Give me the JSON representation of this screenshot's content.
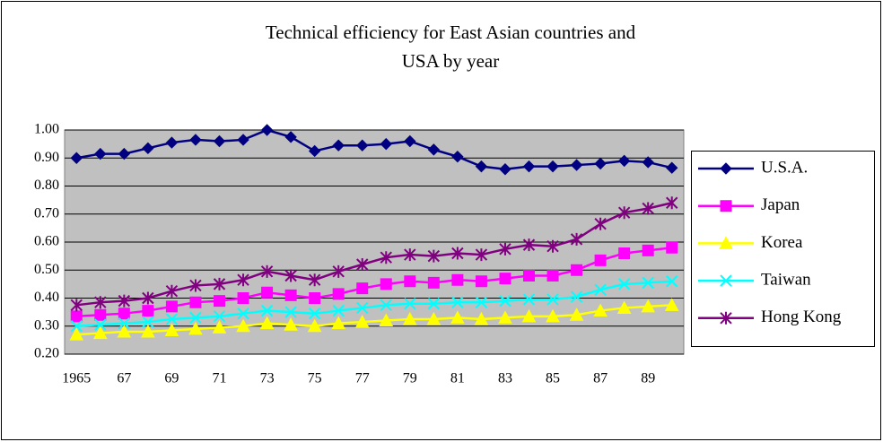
{
  "chart_data": {
    "type": "line",
    "title": "Technical efficiency for East Asian countries and USA by year",
    "categories": [
      "1965",
      null,
      "67",
      null,
      "69",
      null,
      "71",
      null,
      "73",
      null,
      "75",
      null,
      "77",
      null,
      "79",
      null,
      "81",
      null,
      "83",
      null,
      "85",
      null,
      "87",
      null,
      "89",
      null
    ],
    "ylim": [
      0.2,
      1.0
    ],
    "yticks": [
      {
        "value": 0.2,
        "label": "0.20"
      },
      {
        "value": 0.3,
        "label": "0.30"
      },
      {
        "value": 0.4,
        "label": "0.40"
      },
      {
        "value": 0.5,
        "label": "0.50"
      },
      {
        "value": 0.6,
        "label": "0.60"
      },
      {
        "value": 0.7,
        "label": "0.70"
      },
      {
        "value": 0.8,
        "label": "0.80"
      },
      {
        "value": 0.9,
        "label": "0.90"
      },
      {
        "value": 1.0,
        "label": "1.00"
      }
    ],
    "grid": true,
    "legend": "right",
    "series": [
      {
        "name": "U.S.A.",
        "color": "#000080",
        "marker": "diamond",
        "values": [
          0.9,
          0.915,
          0.915,
          0.935,
          0.955,
          0.965,
          0.96,
          0.965,
          1.0,
          0.975,
          0.925,
          0.945,
          0.945,
          0.95,
          0.96,
          0.93,
          0.905,
          0.87,
          0.86,
          0.87,
          0.87,
          0.875,
          0.88,
          0.89,
          0.885,
          0.865
        ]
      },
      {
        "name": "Japan",
        "color": "#ff00ff",
        "marker": "square",
        "values": [
          0.335,
          0.34,
          0.345,
          0.355,
          0.37,
          0.385,
          0.39,
          0.4,
          0.42,
          0.41,
          0.4,
          0.415,
          0.435,
          0.45,
          0.46,
          0.455,
          0.465,
          0.46,
          0.47,
          0.48,
          0.48,
          0.5,
          0.535,
          0.56,
          0.57,
          0.58
        ]
      },
      {
        "name": "Korea",
        "color": "#ffff00",
        "marker": "triangle",
        "values": [
          0.27,
          0.275,
          0.28,
          0.28,
          0.285,
          0.29,
          0.295,
          0.3,
          0.31,
          0.305,
          0.3,
          0.31,
          0.315,
          0.32,
          0.325,
          0.325,
          0.33,
          0.325,
          0.33,
          0.335,
          0.335,
          0.34,
          0.355,
          0.365,
          0.37,
          0.375
        ]
      },
      {
        "name": "Taiwan",
        "color": "#00ffff",
        "marker": "x",
        "values": [
          0.3,
          0.305,
          0.31,
          0.315,
          0.325,
          0.33,
          0.335,
          0.345,
          0.355,
          0.35,
          0.345,
          0.355,
          0.365,
          0.375,
          0.38,
          0.38,
          0.385,
          0.385,
          0.39,
          0.395,
          0.395,
          0.405,
          0.43,
          0.45,
          0.455,
          0.46
        ]
      },
      {
        "name": "Hong Kong",
        "color": "#800080",
        "marker": "star",
        "values": [
          0.375,
          0.385,
          0.39,
          0.4,
          0.425,
          0.445,
          0.45,
          0.465,
          0.495,
          0.48,
          0.465,
          0.495,
          0.52,
          0.545,
          0.555,
          0.55,
          0.56,
          0.555,
          0.575,
          0.59,
          0.585,
          0.61,
          0.665,
          0.705,
          0.72,
          0.74
        ]
      }
    ]
  }
}
